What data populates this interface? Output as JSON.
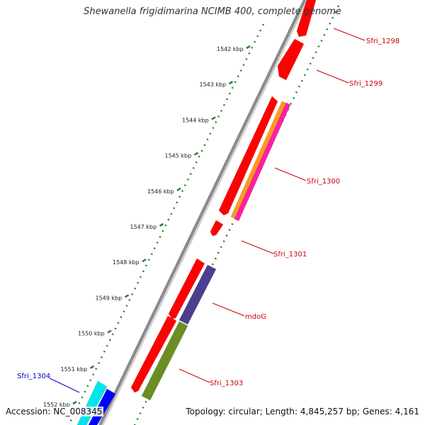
{
  "title": "Shewanella frigidimarina NCIMB 400, complete genome",
  "footer": {
    "accession": "Accession: NC_008345",
    "summary": "Topology: circular; Length: 4,845,257 bp; Genes: 4,161"
  },
  "colors": {
    "backbone": "#8a8a8a",
    "tick": "#2e7d32",
    "label_red": "#cc0000",
    "label_blue": "#0000cc",
    "gene_red": "#ff0000",
    "gene_orange": "#ff9a1f",
    "gene_magenta": "#ff1fa3",
    "gene_purple": "#4b3f8f",
    "gene_olive": "#6b8e23",
    "gene_cyan": "#00e5ee",
    "gene_blue": "#0000ff"
  },
  "ticks": [
    {
      "label": "1542 kbp"
    },
    {
      "label": "1543 kbp"
    },
    {
      "label": "1544 kbp"
    },
    {
      "label": "1545 kbp"
    },
    {
      "label": "1546 kbp"
    },
    {
      "label": "1547 kbp"
    },
    {
      "label": "1548 kbp"
    },
    {
      "label": "1549 kbp"
    },
    {
      "label": "1550 kbp"
    },
    {
      "label": "1551 kbp"
    },
    {
      "label": "1552 kbp"
    }
  ],
  "gene_labels": [
    {
      "name": "Sfri_1298",
      "color": "red"
    },
    {
      "name": "Sfri_1299",
      "color": "red"
    },
    {
      "name": "Sfri_1300",
      "color": "red"
    },
    {
      "name": "Sfri_1301",
      "color": "red"
    },
    {
      "name": "mdoG",
      "color": "red"
    },
    {
      "name": "Sfri_1303",
      "color": "red"
    },
    {
      "name": "Sfri_1304",
      "color": "blue"
    }
  ],
  "genes": [
    {
      "id": "sfri-1298-upper",
      "color": "gene_red"
    },
    {
      "id": "sfri-1298-lower",
      "color": "gene_red"
    },
    {
      "id": "sfri-1300-forward",
      "color": "gene_red"
    },
    {
      "id": "sfri-1300-orange",
      "color": "gene_orange"
    },
    {
      "id": "sfri-1300-magenta",
      "color": "gene_magenta"
    },
    {
      "id": "sfri-1301",
      "color": "gene_red"
    },
    {
      "id": "mdog-forward",
      "color": "gene_red"
    },
    {
      "id": "mdog-purple",
      "color": "gene_purple"
    },
    {
      "id": "sfri-1303-forward",
      "color": "gene_red"
    },
    {
      "id": "sfri-1303-olive",
      "color": "gene_olive"
    },
    {
      "id": "sfri-1304-cyan",
      "color": "gene_cyan"
    },
    {
      "id": "sfri-1304-blue",
      "color": "gene_blue"
    }
  ]
}
